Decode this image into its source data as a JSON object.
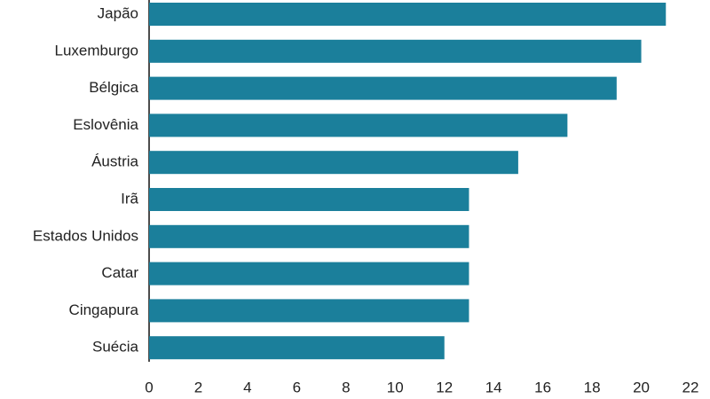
{
  "chart_data": {
    "type": "bar",
    "orientation": "horizontal",
    "categories": [
      "Japão",
      "Luxemburgo",
      "Bélgica",
      "Eslovênia",
      "Áustria",
      "Irã",
      "Estados Unidos",
      "Catar",
      "Cingapura",
      "Suécia"
    ],
    "values": [
      21,
      20,
      19,
      17,
      15,
      13,
      13,
      13,
      13,
      12
    ],
    "color": "#1b7f9b",
    "xlim": [
      0,
      22
    ],
    "xticks": [
      0,
      2,
      4,
      6,
      8,
      10,
      12,
      14,
      16,
      18,
      20,
      22
    ],
    "grid": false
  }
}
